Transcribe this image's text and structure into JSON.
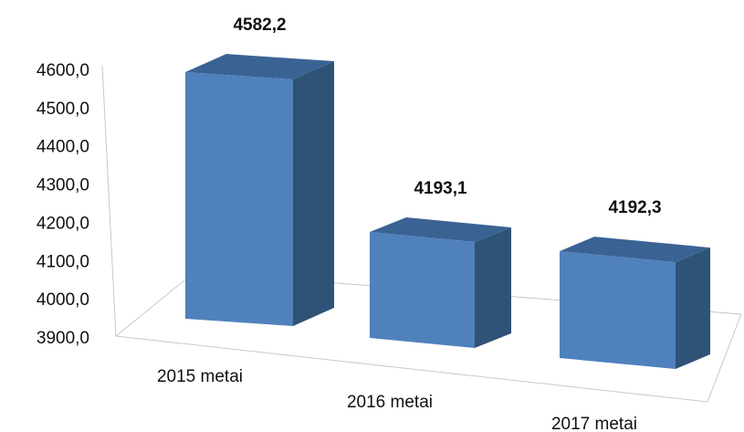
{
  "chart_data": {
    "type": "bar",
    "style": "3d-column",
    "categories": [
      "2015 metai",
      "2016 metai",
      "2017 metai"
    ],
    "values": [
      4582.2,
      4193.1,
      4192.3
    ],
    "data_labels": [
      "4582,2",
      "4193,1",
      "4192,3"
    ],
    "y_ticks": [
      "3900,0",
      "4000,0",
      "4100,0",
      "4200,0",
      "4300,0",
      "4400,0",
      "4500,0",
      "4600,0"
    ],
    "ylim": [
      3900,
      4600
    ],
    "grid": false,
    "legend": "none",
    "colors": {
      "front": "#4f81bd",
      "side": "#2f5277",
      "top": "#3a6394",
      "axis": "#c8c8c8"
    }
  }
}
